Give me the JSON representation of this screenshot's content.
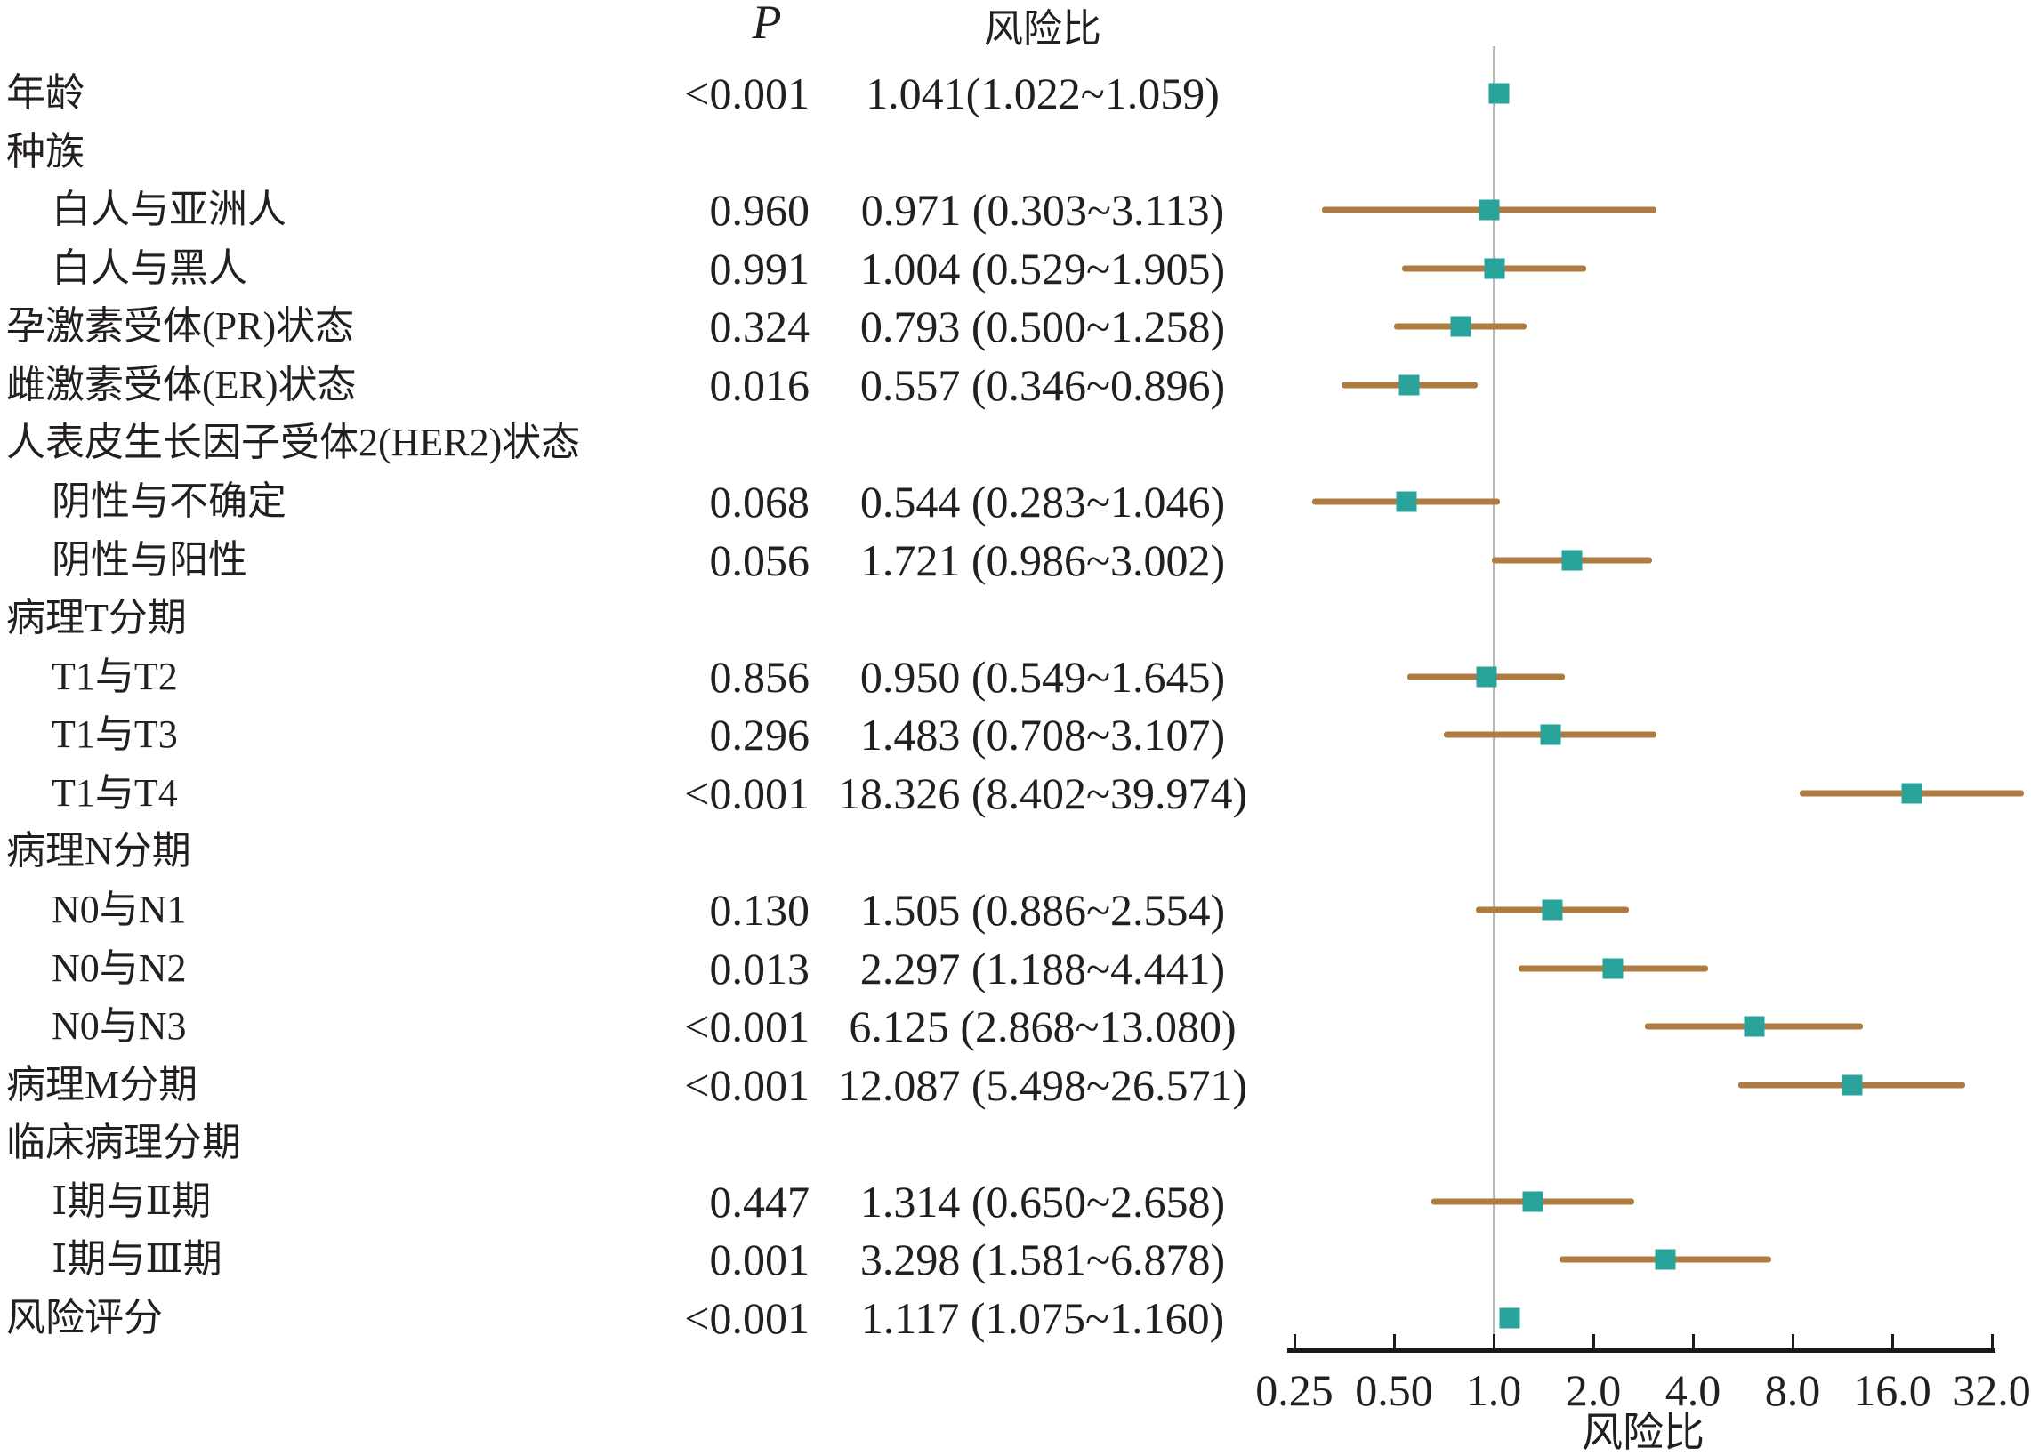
{
  "header": {
    "p_label": "P",
    "hr_label": "风险比"
  },
  "axis": {
    "label": "风险比",
    "scale": "log2",
    "min": 0.25,
    "max": 32.0,
    "ref_line": 1.0,
    "ticks": [
      {
        "value": 0.25,
        "label": "0.25"
      },
      {
        "value": 0.5,
        "label": "0.50"
      },
      {
        "value": 1.0,
        "label": "1.0"
      },
      {
        "value": 2.0,
        "label": "2.0"
      },
      {
        "value": 4.0,
        "label": "4.0"
      },
      {
        "value": 8.0,
        "label": "8.0"
      },
      {
        "value": 16.0,
        "label": "16.0"
      },
      {
        "value": 32.0,
        "label": "32.0"
      }
    ]
  },
  "colors": {
    "marker": "#2aa39a",
    "ci_line": "#ae7c40",
    "ref_line": "#b9b9b9",
    "axis": "#1a1a1a",
    "text": "#231f20"
  },
  "chart_data": {
    "type": "scatter",
    "variant": "forest-plot",
    "title": "",
    "xlabel": "风险比",
    "ylabel": "",
    "xscale": "log2",
    "xlim": [
      0.25,
      40
    ],
    "x_ticks": [
      0.25,
      0.5,
      1.0,
      2.0,
      4.0,
      8.0,
      16.0,
      32.0
    ],
    "reference_line": 1.0,
    "legend": "none",
    "grid": "off",
    "rows": [
      {
        "label": "年龄",
        "indent": 0,
        "group": 0,
        "p": "<0.001",
        "hr_text": "1.041(1.022~1.059)",
        "hr": 1.041,
        "lo": 1.022,
        "hi": 1.059
      },
      {
        "label": "种族",
        "indent": 0,
        "group": 1,
        "p": "",
        "hr_text": "",
        "hr": null,
        "lo": null,
        "hi": null
      },
      {
        "label": "白人与亚洲人",
        "indent": 1,
        "group": 0,
        "p": "0.960",
        "hr_text": "0.971 (0.303~3.113)",
        "hr": 0.971,
        "lo": 0.303,
        "hi": 3.113
      },
      {
        "label": "白人与黑人",
        "indent": 1,
        "group": 0,
        "p": "0.991",
        "hr_text": "1.004 (0.529~1.905)",
        "hr": 1.004,
        "lo": 0.529,
        "hi": 1.905
      },
      {
        "label": "孕激素受体(PR)状态",
        "indent": 0,
        "group": 0,
        "p": "0.324",
        "hr_text": "0.793 (0.500~1.258)",
        "hr": 0.793,
        "lo": 0.5,
        "hi": 1.258
      },
      {
        "label": "雌激素受体(ER)状态",
        "indent": 0,
        "group": 0,
        "p": "0.016",
        "hr_text": "0.557 (0.346~0.896)",
        "hr": 0.557,
        "lo": 0.346,
        "hi": 0.896
      },
      {
        "label": "人表皮生长因子受体2(HER2)状态",
        "indent": 0,
        "group": 1,
        "p": "",
        "hr_text": "",
        "hr": null,
        "lo": null,
        "hi": null
      },
      {
        "label": "阴性与不确定",
        "indent": 1,
        "group": 0,
        "p": "0.068",
        "hr_text": "0.544 (0.283~1.046)",
        "hr": 0.544,
        "lo": 0.283,
        "hi": 1.046
      },
      {
        "label": "阴性与阳性",
        "indent": 1,
        "group": 0,
        "p": "0.056",
        "hr_text": "1.721 (0.986~3.002)",
        "hr": 1.721,
        "lo": 0.986,
        "hi": 3.002
      },
      {
        "label": "病理T分期",
        "indent": 0,
        "group": 1,
        "p": "",
        "hr_text": "",
        "hr": null,
        "lo": null,
        "hi": null
      },
      {
        "label": "T1与T2",
        "indent": 1,
        "group": 0,
        "p": "0.856",
        "hr_text": "0.950 (0.549~1.645)",
        "hr": 0.95,
        "lo": 0.549,
        "hi": 1.645
      },
      {
        "label": "T1与T3",
        "indent": 1,
        "group": 0,
        "p": "0.296",
        "hr_text": "1.483 (0.708~3.107)",
        "hr": 1.483,
        "lo": 0.708,
        "hi": 3.107
      },
      {
        "label": "T1与T4",
        "indent": 1,
        "group": 0,
        "p": "<0.001",
        "hr_text": "18.326 (8.402~39.974)",
        "hr": 18.326,
        "lo": 8.402,
        "hi": 39.974
      },
      {
        "label": "病理N分期",
        "indent": 0,
        "group": 1,
        "p": "",
        "hr_text": "",
        "hr": null,
        "lo": null,
        "hi": null
      },
      {
        "label": "N0与N1",
        "indent": 1,
        "group": 0,
        "p": "0.130",
        "hr_text": "1.505 (0.886~2.554)",
        "hr": 1.505,
        "lo": 0.886,
        "hi": 2.554
      },
      {
        "label": "N0与N2",
        "indent": 1,
        "group": 0,
        "p": "0.013",
        "hr_text": "2.297 (1.188~4.441)",
        "hr": 2.297,
        "lo": 1.188,
        "hi": 4.441
      },
      {
        "label": "N0与N3",
        "indent": 1,
        "group": 0,
        "p": "<0.001",
        "hr_text": "6.125 (2.868~13.080)",
        "hr": 6.125,
        "lo": 2.868,
        "hi": 13.08
      },
      {
        "label": "病理M分期",
        "indent": 0,
        "group": 0,
        "p": "<0.001",
        "hr_text": "12.087 (5.498~26.571)",
        "hr": 12.087,
        "lo": 5.498,
        "hi": 26.571
      },
      {
        "label": "临床病理分期",
        "indent": 0,
        "group": 1,
        "p": "",
        "hr_text": "",
        "hr": null,
        "lo": null,
        "hi": null
      },
      {
        "label": "Ⅰ期与Ⅱ期",
        "indent": 1,
        "group": 0,
        "p": "0.447",
        "hr_text": "1.314 (0.650~2.658)",
        "hr": 1.314,
        "lo": 0.65,
        "hi": 2.658
      },
      {
        "label": "Ⅰ期与Ⅲ期",
        "indent": 1,
        "group": 0,
        "p": "0.001",
        "hr_text": "3.298 (1.581~6.878)",
        "hr": 3.298,
        "lo": 1.581,
        "hi": 6.878
      },
      {
        "label": "风险评分",
        "indent": 0,
        "group": 0,
        "p": "<0.001",
        "hr_text": "1.117 (1.075~1.160)",
        "hr": 1.117,
        "lo": 1.075,
        "hi": 1.16
      }
    ]
  }
}
